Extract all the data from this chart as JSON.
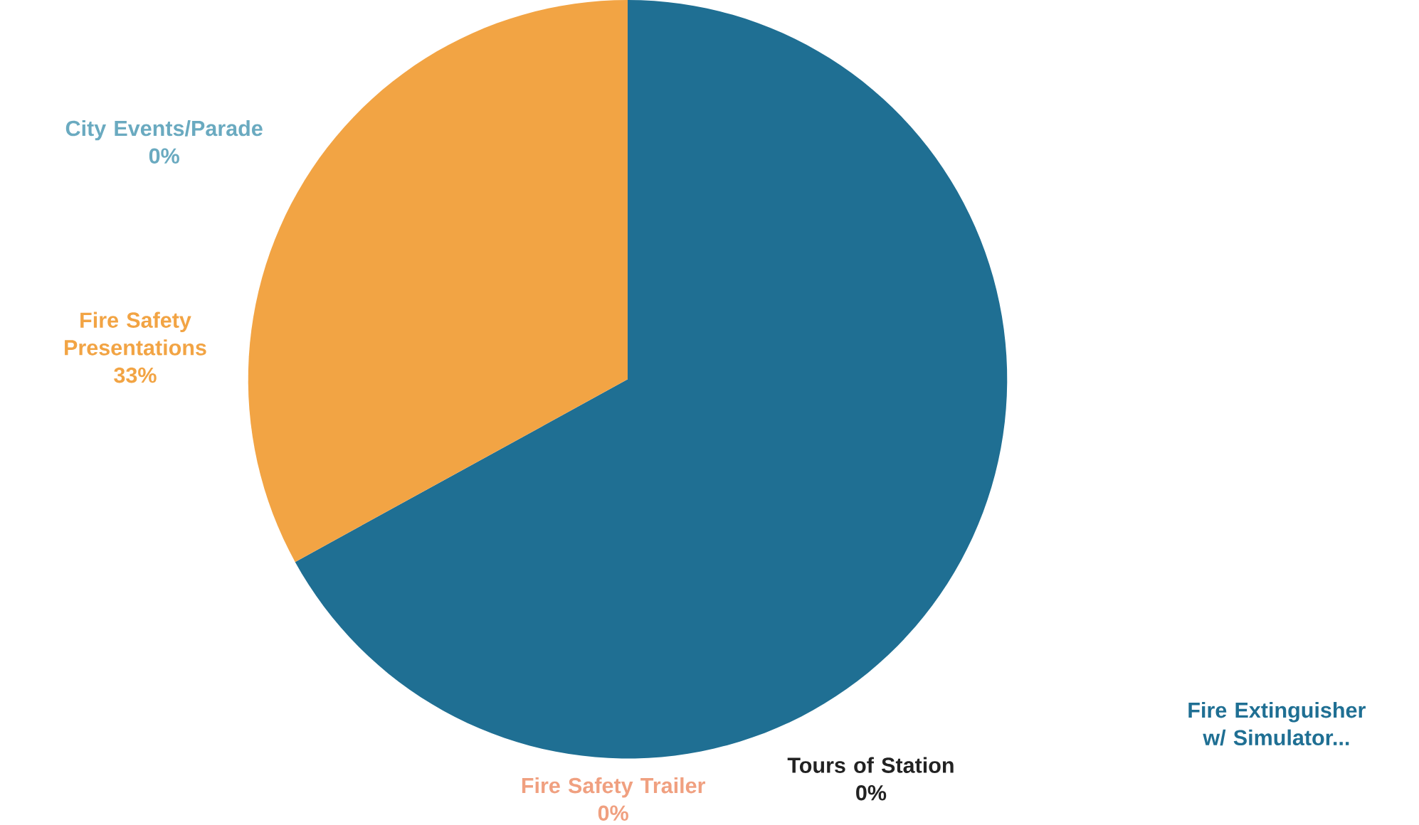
{
  "chart_data": {
    "type": "pie",
    "categories": [
      "Fire Extinguisher w/ Simulator...",
      "Tours of Station",
      "Fire Safety Trailer",
      "Fire Safety Presentations",
      "City Events/Parade"
    ],
    "values": [
      67,
      0,
      0,
      33,
      0
    ],
    "value_labels": [
      null,
      "0%",
      "0%",
      "33%",
      "0%"
    ],
    "colors": [
      "#1f6f93",
      "#222222",
      "#f0a080",
      "#f2a444",
      "#6aaac0"
    ]
  }
}
